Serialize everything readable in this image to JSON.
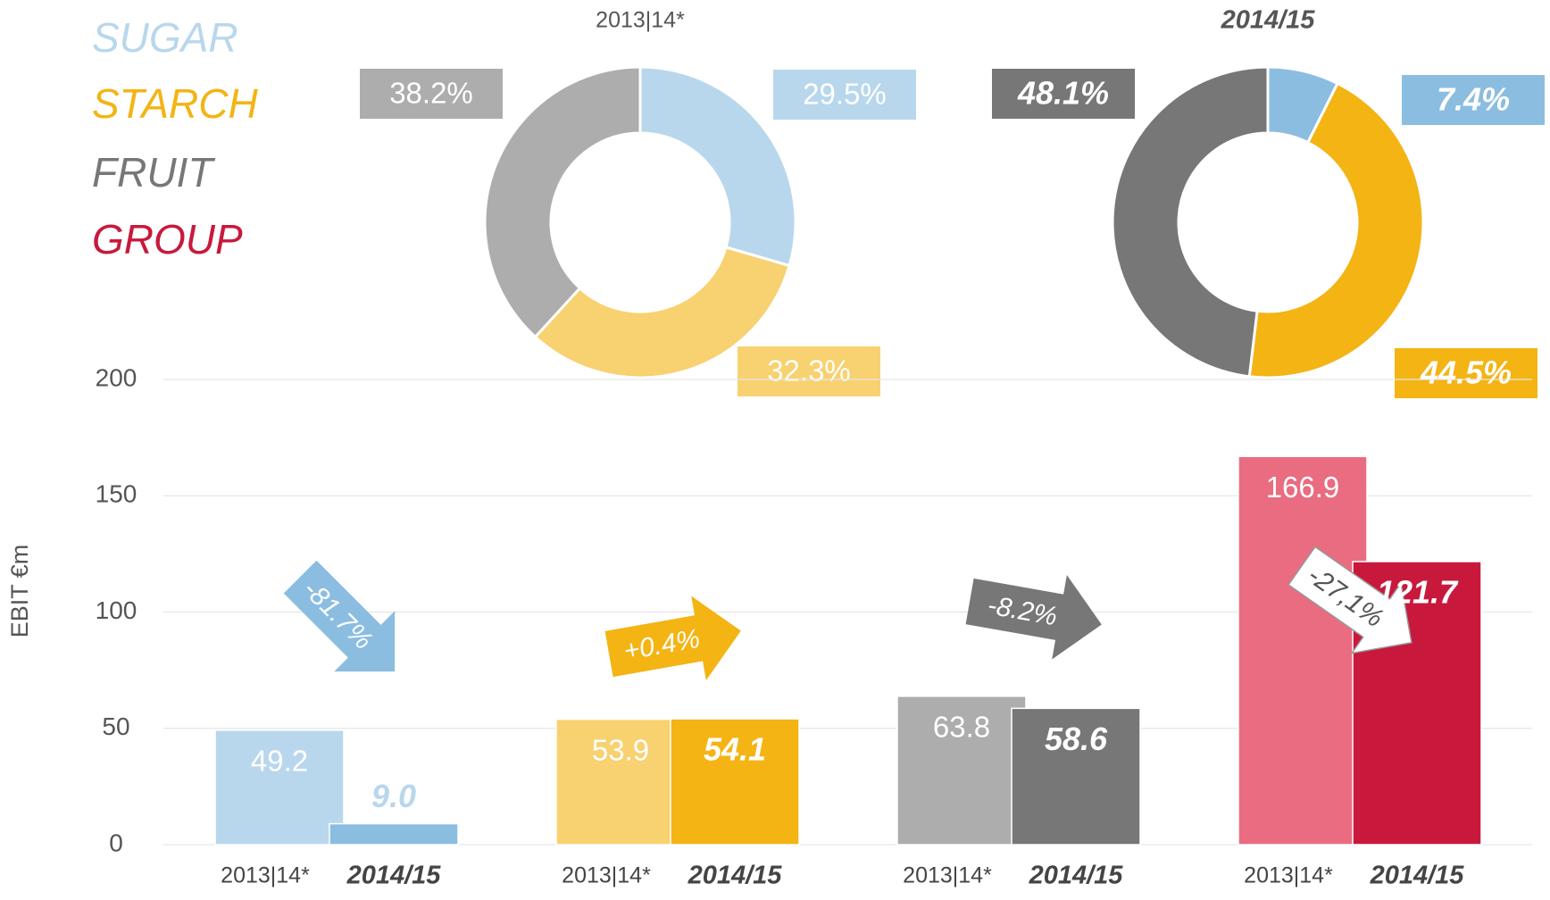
{
  "chart_data": [
    {
      "type": "pie",
      "title": "2013|14*",
      "values": [
        29.5,
        32.3,
        38.2
      ],
      "value_labels": [
        "29.5%",
        "32.3%",
        "38.2%"
      ],
      "colors": [
        "#b9d7ec",
        "#f8d170",
        "#adadad"
      ]
    },
    {
      "type": "pie",
      "title": "2014/15",
      "values": [
        7.4,
        44.5,
        48.1
      ],
      "value_labels": [
        "7.4%",
        "44.5%",
        "48.1%"
      ],
      "colors": [
        "#8bbde0",
        "#f3b414",
        "#777777"
      ]
    },
    {
      "type": "bar",
      "y_label": "EBIT €m",
      "categories": [
        "SUGAR",
        "STARCH",
        "FRUIT",
        "GROUP"
      ],
      "series": [
        {
          "name": "2013|14*",
          "values": [
            49.2,
            53.9,
            63.8,
            166.9
          ],
          "colors": [
            "#b9d7ec",
            "#f8d170",
            "#adadad",
            "#e96c80"
          ]
        },
        {
          "name": "2014/15",
          "values": [
            9.0,
            54.1,
            58.6,
            121.7
          ],
          "value_labels": [
            "9.0",
            "54.1",
            "58.6",
            "121.7"
          ],
          "colors": [
            "#8bbde0",
            "#f3b414",
            "#777777",
            "#c8193c"
          ]
        }
      ],
      "changes": [
        "-81.7%",
        "+0.4%",
        "-8.2%",
        "-27,1%"
      ],
      "ylim": [
        0,
        200
      ],
      "yticks": [
        0,
        50,
        100,
        150,
        200
      ],
      "grid": true
    }
  ]
}
